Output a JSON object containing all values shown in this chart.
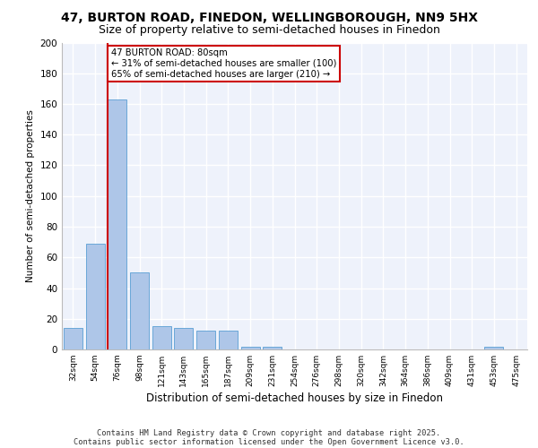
{
  "title1": "47, BURTON ROAD, FINEDON, WELLINGBOROUGH, NN9 5HX",
  "title2": "Size of property relative to semi-detached houses in Finedon",
  "xlabel": "Distribution of semi-detached houses by size in Finedon",
  "ylabel": "Number of semi-detached properties",
  "categories": [
    "32sqm",
    "54sqm",
    "76sqm",
    "98sqm",
    "121sqm",
    "143sqm",
    "165sqm",
    "187sqm",
    "209sqm",
    "231sqm",
    "254sqm",
    "276sqm",
    "298sqm",
    "320sqm",
    "342sqm",
    "364sqm",
    "386sqm",
    "409sqm",
    "431sqm",
    "453sqm",
    "475sqm"
  ],
  "values": [
    14,
    69,
    163,
    50,
    15,
    14,
    12,
    12,
    2,
    2,
    0,
    0,
    0,
    0,
    0,
    0,
    0,
    0,
    0,
    2,
    0
  ],
  "bar_color": "#aec6e8",
  "bar_edge_color": "#5a9fd4",
  "vline_color": "#cc0000",
  "annotation_box_edge": "#cc0000",
  "ylim": [
    0,
    200
  ],
  "yticks": [
    0,
    20,
    40,
    60,
    80,
    100,
    120,
    140,
    160,
    180,
    200
  ],
  "bg_color": "#eef2fb",
  "footer1": "Contains HM Land Registry data © Crown copyright and database right 2025.",
  "footer2": "Contains public sector information licensed under the Open Government Licence v3.0.",
  "title1_fontsize": 10,
  "title2_fontsize": 9,
  "vline_x": 1.575
}
